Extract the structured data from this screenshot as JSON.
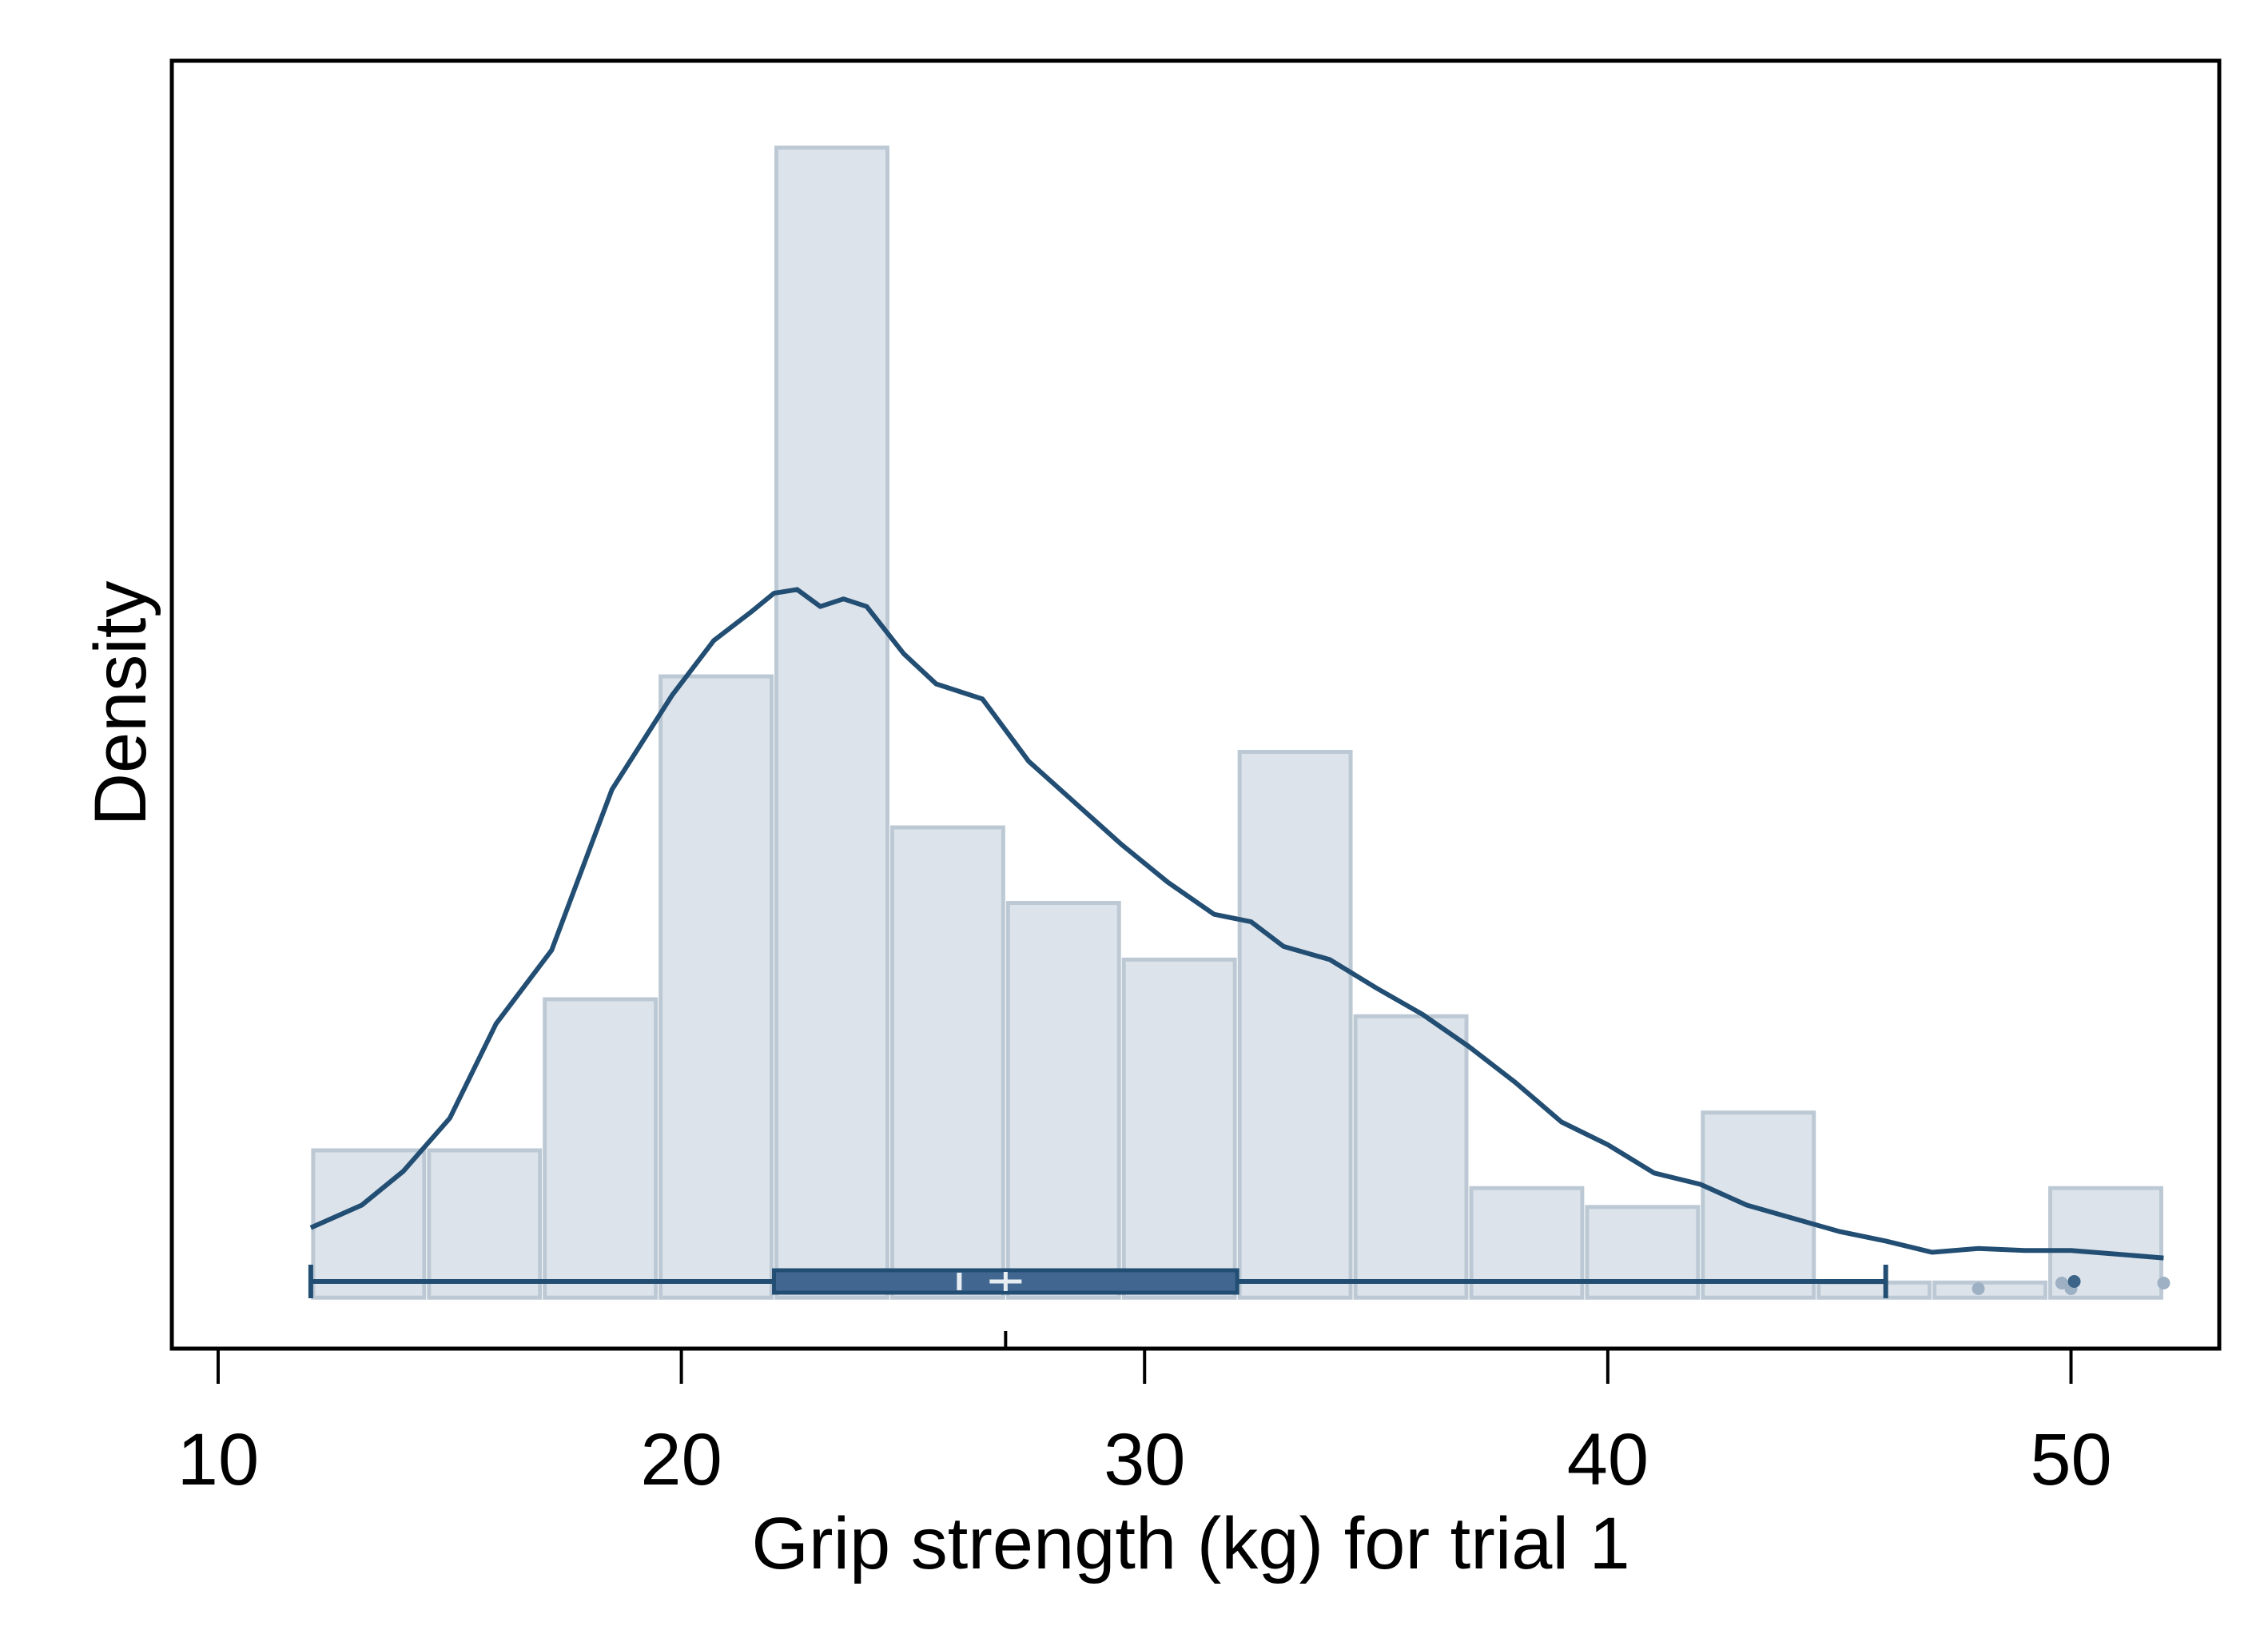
{
  "chart_data": {
    "type": "bar",
    "xlabel": "Grip strength (kg) for trial 1",
    "ylabel": "Density",
    "xlim": [
      9,
      53.2
    ],
    "ylim": [
      -0.0027,
      0.0655
    ],
    "x_ticks": [
      10,
      20,
      30,
      40,
      50
    ],
    "y_ticks": [],
    "grid": false,
    "legend": "none",
    "colors": {
      "bar_fill": "#dce3eb",
      "bar_edge": "#bcc9d4",
      "line": "#234e73",
      "box_fill": "#416791",
      "median": "#e8edf2",
      "outlier": "#9eb0c3",
      "outlier_dark": "#3c6488",
      "frame": "#000000"
    },
    "histogram": {
      "bin_edges": [
        12,
        14.5,
        17,
        19.5,
        22,
        24.5,
        27,
        29.5,
        32,
        34.5,
        37,
        39.5,
        42,
        44.5,
        47,
        49.5,
        52
      ],
      "densities": [
        0.0078,
        0.0078,
        0.0158,
        0.0329,
        0.0609,
        0.0249,
        0.0209,
        0.0179,
        0.0289,
        0.0149,
        0.0058,
        0.0048,
        0.0098,
        0.0008,
        0.0008,
        0.0058
      ]
    },
    "density_curve": {
      "x": [
        12,
        13.1,
        14,
        15,
        16,
        17.2,
        18.5,
        19.8,
        20.7,
        21.5,
        22,
        22.5,
        23,
        23.5,
        24,
        24.8,
        25.5,
        26.5,
        27.5,
        28.5,
        29.5,
        30.5,
        31.5,
        32.3,
        33,
        34,
        35,
        36,
        37,
        38,
        39,
        40,
        41,
        42,
        43,
        44,
        45,
        46,
        47,
        48,
        49,
        50,
        51,
        52
      ],
      "y": [
        0.0037,
        0.0049,
        0.0067,
        0.0095,
        0.0145,
        0.0184,
        0.0269,
        0.0319,
        0.0348,
        0.0363,
        0.0373,
        0.0375,
        0.0366,
        0.037,
        0.0366,
        0.0341,
        0.0325,
        0.0317,
        0.0284,
        0.0262,
        0.024,
        0.022,
        0.0203,
        0.0199,
        0.0186,
        0.0179,
        0.0164,
        0.015,
        0.0133,
        0.0114,
        0.0093,
        0.0081,
        0.0066,
        0.006,
        0.0049,
        0.0042,
        0.0035,
        0.003,
        0.0024,
        0.0026,
        0.0025,
        0.0025,
        0.0023,
        0.0021
      ]
    },
    "boxplot": {
      "whisker_low": 12,
      "q1": 22,
      "median": 26,
      "mean": 27,
      "q3": 32,
      "whisker_high": 46,
      "outliers": [
        48,
        49.8,
        50,
        52
      ],
      "outliers_dark": [
        50
      ]
    }
  }
}
